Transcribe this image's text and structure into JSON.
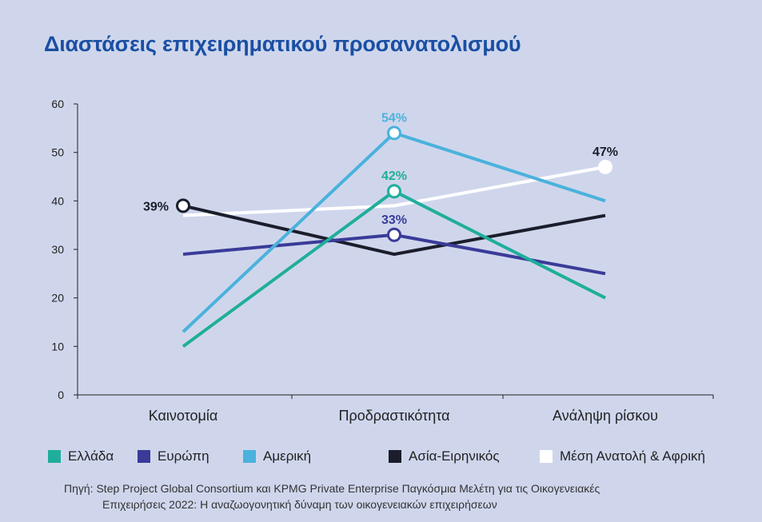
{
  "title": "Διαστάσεις επιχειρηματικού προσανατολισμού",
  "chart_data": {
    "type": "line",
    "title": "Διαστάσεις επιχειρηματικού προσανατολισμού",
    "xlabel": "",
    "ylabel": "",
    "categories": [
      "Καινοτομία",
      "Προδραστικότητα",
      "Ανάληψη ρίσκου"
    ],
    "ylim": [
      0,
      60
    ],
    "yticks": [
      0,
      10,
      20,
      30,
      40,
      50,
      60
    ],
    "grid": false,
    "legend_position": "bottom",
    "series": [
      {
        "name": "Ελλάδα",
        "color": "#1fae9b",
        "values": [
          10,
          42,
          20
        ]
      },
      {
        "name": "Ευρώπη",
        "color": "#3a3b98",
        "values": [
          29,
          33,
          25
        ]
      },
      {
        "name": "Αμερική",
        "color": "#4ab2dc",
        "values": [
          13,
          54,
          40
        ]
      },
      {
        "name": "Ασία-Ειρηνικός",
        "color": "#1b1d2b",
        "values": [
          39,
          29,
          37
        ]
      },
      {
        "name": "Μέση Ανατολή & Αφρική",
        "color": "#ffffff",
        "values": [
          37,
          39,
          47
        ]
      }
    ],
    "annotations": [
      {
        "series": 3,
        "index": 0,
        "text": "39%",
        "color": "#1b1d2b",
        "position": "left"
      },
      {
        "series": 2,
        "index": 1,
        "text": "54%",
        "color": "#4ab2dc",
        "position": "above"
      },
      {
        "series": 0,
        "index": 1,
        "text": "42%",
        "color": "#1fae9b",
        "position": "above"
      },
      {
        "series": 1,
        "index": 1,
        "text": "33%",
        "color": "#3a3b98",
        "position": "above"
      },
      {
        "series": 4,
        "index": 2,
        "text": "47%",
        "color": "#1b1d2b",
        "position": "above"
      }
    ]
  },
  "source": {
    "line1": "Πηγή: Step Project Global Consortium και KPMG Private Enterprise Παγκόσμια Μελέτη για τις Οικογενειακές",
    "line2": "Επιχειρήσεις 2022: Η αναζωογονητική δύναμη των οικογενειακών επιχειρήσεων"
  }
}
